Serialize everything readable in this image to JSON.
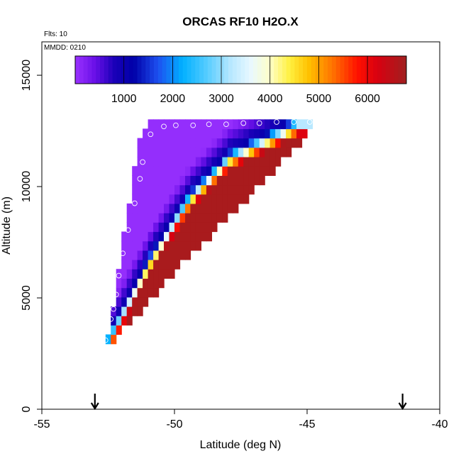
{
  "chart_data": {
    "type": "heatmap",
    "title": "ORCAS RF10 H2O.X",
    "annotations": {
      "flights": "Flts: 10",
      "mmdd": "MMDD: 0210"
    },
    "xlabel": "Latitude (deg N)",
    "ylabel": "Altitude (m)",
    "xlim": [
      -55,
      -40
    ],
    "ylim": [
      0,
      16500
    ],
    "xticks": [
      -55,
      -50,
      -45,
      -40
    ],
    "xtick_labels": [
      "-55",
      "-50",
      "-45",
      "-40"
    ],
    "yticks": [
      0,
      5000,
      10000,
      15000
    ],
    "ytick_labels": [
      "0",
      "5000",
      "10000",
      "15000"
    ],
    "arrows_at_lat": [
      -53,
      -41.4
    ],
    "colorbar": {
      "range": [
        0,
        6800
      ],
      "ticks": [
        1000,
        2000,
        3000,
        4000,
        5000,
        6000
      ],
      "tick_labels": [
        "1000",
        "2000",
        "3000",
        "4000",
        "5000",
        "6000"
      ],
      "stops": [
        {
          "v": 0,
          "color": "#9a32ff"
        },
        {
          "v": 400,
          "color": "#6a10e8"
        },
        {
          "v": 800,
          "color": "#1a00b8"
        },
        {
          "v": 1200,
          "color": "#0000a8"
        },
        {
          "v": 1700,
          "color": "#1e50f0"
        },
        {
          "v": 2200,
          "color": "#00b0ff"
        },
        {
          "v": 2700,
          "color": "#55ccff"
        },
        {
          "v": 3200,
          "color": "#b8e8ff"
        },
        {
          "v": 3600,
          "color": "#e8f8ff"
        },
        {
          "v": 4000,
          "color": "#ffffc8"
        },
        {
          "v": 4400,
          "color": "#fff040"
        },
        {
          "v": 4800,
          "color": "#ffc000"
        },
        {
          "v": 5300,
          "color": "#ff7000"
        },
        {
          "v": 5800,
          "color": "#ff1000"
        },
        {
          "v": 6200,
          "color": "#d80010"
        },
        {
          "v": 6800,
          "color": "#a02020"
        }
      ]
    },
    "field": {
      "lat_step": 0.2,
      "alt_step": 420,
      "value_min": 50,
      "value_max": 6700,
      "value_at_ridge": 1100,
      "dry_gradient_per_m": 0.9,
      "moist_gradient_per_m": 7.0,
      "ridge": [
        {
          "lat": -52.6,
          "alt": 3100
        },
        {
          "lat": -51.0,
          "alt": 6800
        },
        {
          "lat": -49.5,
          "alt": 9600
        },
        {
          "lat": -48.0,
          "alt": 11400
        },
        {
          "lat": -45.4,
          "alt": 12900
        }
      ],
      "upper_envelope": [
        {
          "lat": -52.6,
          "alt": 3200
        },
        {
          "lat": -52.3,
          "alt": 5300
        },
        {
          "lat": -52.1,
          "alt": 7000
        },
        {
          "lat": -51.9,
          "alt": 8200
        },
        {
          "lat": -51.7,
          "alt": 9800
        },
        {
          "lat": -51.5,
          "alt": 11200
        },
        {
          "lat": -51.3,
          "alt": 12500
        },
        {
          "lat": -50.5,
          "alt": 12800
        },
        {
          "lat": -44.9,
          "alt": 13000
        }
      ],
      "lower_boundary": [
        {
          "lat": -52.6,
          "alt": 3000
        },
        {
          "lat": -50.0,
          "alt": 6500
        },
        {
          "lat": -47.5,
          "alt": 9500
        },
        {
          "lat": -45.0,
          "alt": 12600
        },
        {
          "lat": -44.8,
          "alt": 12800
        }
      ]
    },
    "flight_points": [
      {
        "lat": -52.6,
        "alt": 3100
      },
      {
        "lat": -52.4,
        "alt": 4050
      },
      {
        "lat": -52.3,
        "alt": 4500
      },
      {
        "lat": -52.2,
        "alt": 5150
      },
      {
        "lat": -52.1,
        "alt": 6000
      },
      {
        "lat": -51.95,
        "alt": 7000
      },
      {
        "lat": -51.75,
        "alt": 8050
      },
      {
        "lat": -51.5,
        "alt": 9250
      },
      {
        "lat": -51.3,
        "alt": 10350
      },
      {
        "lat": -51.2,
        "alt": 11100
      },
      {
        "lat": -50.9,
        "alt": 12350
      },
      {
        "lat": -50.4,
        "alt": 12700
      },
      {
        "lat": -49.95,
        "alt": 12750
      },
      {
        "lat": -49.3,
        "alt": 12750
      },
      {
        "lat": -48.7,
        "alt": 12800
      },
      {
        "lat": -48.05,
        "alt": 12800
      },
      {
        "lat": -47.4,
        "alt": 12850
      },
      {
        "lat": -46.8,
        "alt": 12850
      },
      {
        "lat": -46.15,
        "alt": 12900
      },
      {
        "lat": -45.5,
        "alt": 12900
      },
      {
        "lat": -44.9,
        "alt": 12900
      }
    ]
  }
}
